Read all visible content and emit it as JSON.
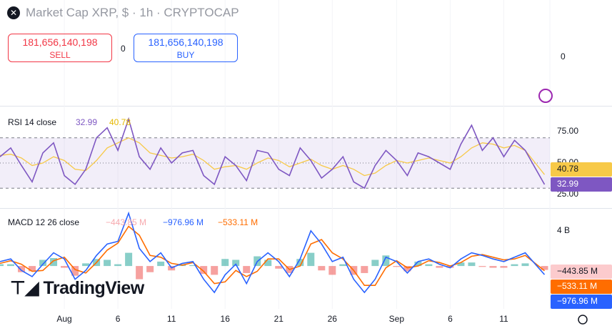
{
  "header": {
    "title": "Market Cap XRP, $ · 1h · CRYPTOCAP",
    "sell": "181,656,140,198",
    "sell_label": "SELL",
    "spread": "0",
    "buy": "181,656,140,198",
    "buy_label": "BUY",
    "price_axis_label": "0",
    "logo": "TradingView"
  },
  "chart_data": [
    {
      "type": "line",
      "title": "RSI 14 close",
      "x": [
        -6,
        -5,
        -4,
        -3,
        -2,
        -1,
        0,
        1,
        2,
        3,
        4,
        5,
        6,
        7,
        8,
        9,
        10,
        11,
        12,
        13,
        14,
        15,
        16,
        17,
        18,
        19,
        20,
        21,
        22,
        23,
        24,
        25,
        26,
        27,
        28,
        29,
        30,
        31,
        32,
        33,
        34,
        35,
        36,
        37,
        38,
        39,
        40,
        41,
        42,
        43,
        44.8
      ],
      "xlim": [
        -6,
        45.3
      ],
      "xticks": [
        {
          "value": 0,
          "label": "Aug"
        },
        {
          "value": 5,
          "label": "6"
        },
        {
          "value": 10,
          "label": "11"
        },
        {
          "value": 15,
          "label": "16"
        },
        {
          "value": 20,
          "label": "21"
        },
        {
          "value": 25,
          "label": "26"
        },
        {
          "value": 31,
          "label": "Sep"
        },
        {
          "value": 36,
          "label": "6"
        },
        {
          "value": 41,
          "label": "11"
        }
      ],
      "ylim": [
        14.8,
        94.3
      ],
      "yticks": [
        {
          "value": 75,
          "label": "75.00"
        },
        {
          "value": 50,
          "label": "50.00"
        },
        {
          "value": 25,
          "label": "25.00"
        }
      ],
      "levels": [
        70,
        50,
        30
      ],
      "series": [
        {
          "name": "RSI",
          "color": "#7e57c2",
          "values": [
            55,
            62,
            48,
            35,
            58,
            66,
            40,
            33,
            45,
            70,
            78,
            60,
            85,
            55,
            45,
            62,
            50,
            58,
            60,
            40,
            33,
            55,
            48,
            36,
            60,
            58,
            45,
            40,
            62,
            52,
            38,
            45,
            55,
            35,
            30,
            48,
            60,
            52,
            40,
            58,
            55,
            50,
            45,
            65,
            80,
            60,
            70,
            55,
            68,
            60,
            32.99
          ]
        },
        {
          "name": "MA",
          "color": "#f7c948",
          "values": [
            56,
            57,
            54,
            48,
            50,
            55,
            52,
            45,
            44,
            52,
            62,
            66,
            70,
            66,
            58,
            56,
            54,
            55,
            57,
            52,
            45,
            47,
            48,
            45,
            50,
            54,
            52,
            47,
            50,
            53,
            48,
            45,
            48,
            45,
            40,
            42,
            48,
            52,
            50,
            52,
            54,
            52,
            50,
            55,
            62,
            66,
            65,
            62,
            64,
            60,
            40.78
          ]
        }
      ]
    },
    {
      "type": "macd",
      "title": "MACD 12 26 close",
      "ylim": [
        -4.7,
        6.5
      ],
      "yticks": [
        {
          "value": 4,
          "label": "4 B"
        }
      ],
      "series": [
        {
          "name": "Histogram",
          "color": "#f7a9ae",
          "values": [
            0.2,
            0.2,
            -0.7,
            -0.6,
            0.7,
            0.9,
            -0.2,
            -1.1,
            0.3,
            0.8,
            0.7,
            0.2,
            1.5,
            -1.5,
            -0.7,
            0.5,
            -0.5,
            0.2,
            0.1,
            -0.9,
            -1,
            0.8,
            0.7,
            -0.8,
            1.1,
            0.7,
            -0.3,
            -0.8,
            0.8,
            1.5,
            -0.5,
            -1,
            0.2,
            -1,
            -0.8,
            0.7,
            1.2,
            -0.1,
            -0.6,
            0.5,
            0.2,
            -0.2,
            -0.2,
            0.4,
            0.4,
            -0.1,
            -0.2,
            -0.2,
            0.2,
            0.3,
            -0.44385
          ],
          "value_labels": {
            "50": "−443.85 M"
          }
        },
        {
          "name": "MACD",
          "color": "#2962ff",
          "values": [
            0.5,
            0.8,
            -0.5,
            -1.2,
            0.2,
            1.5,
            0.8,
            -1.5,
            -0.5,
            1.2,
            2.5,
            2.8,
            6,
            2,
            0.5,
            1.5,
            -0.2,
            0.3,
            0.5,
            -1.5,
            -3,
            -1,
            0.2,
            -2,
            0.5,
            1.5,
            0.5,
            -1.2,
            0.8,
            4,
            2.5,
            0.5,
            1,
            -1.5,
            -3,
            -1.5,
            1,
            0.5,
            -0.8,
            0.5,
            0.8,
            0.2,
            -0.2,
            0.8,
            1.5,
            1.2,
            0.8,
            0.5,
            1,
            1.5,
            -0.97696
          ],
          "value_labels": {
            "50": "−976.96 M"
          }
        },
        {
          "name": "Signal",
          "color": "#ff6d00",
          "values": [
            0.3,
            0.6,
            0.2,
            -0.6,
            -0.5,
            0.6,
            1,
            -0.4,
            -0.8,
            0.4,
            1.8,
            2.6,
            4.5,
            3.5,
            1.2,
            1,
            0.3,
            0.1,
            0.4,
            -0.6,
            -2,
            -1.8,
            -0.5,
            -1.2,
            -0.6,
            0.8,
            0.8,
            -0.4,
            0,
            2.5,
            3,
            1.5,
            0.8,
            -0.5,
            -2.2,
            -2.2,
            -0.2,
            0.6,
            -0.2,
            0,
            0.6,
            0.4,
            0,
            0.4,
            1.1,
            1.3,
            1,
            0.7,
            0.8,
            1.2,
            -0.53311
          ],
          "value_labels": {
            "50": "−533.11 M"
          }
        }
      ]
    }
  ]
}
